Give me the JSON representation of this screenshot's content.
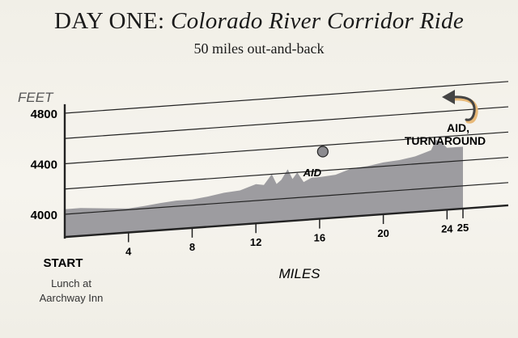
{
  "header": {
    "title_prefix": "DAY ONE:",
    "title_italic": "Colorado River Corridor Ride",
    "subtitle": "50 miles out-and-back"
  },
  "start": {
    "label": "START",
    "note_line1": "Lunch at",
    "note_line2": "Aarchway Inn"
  },
  "annotations": {
    "aid": "AID",
    "aid_turnaround_line1": "AID,",
    "aid_turnaround_line2": "TURNAROUND"
  },
  "colors": {
    "profile_fill": "#9d9ca0",
    "line": "#222222",
    "aid_marker": "#8c8b8f",
    "arrow": "#444444",
    "arrow_accent": "#e8b978"
  },
  "chart_data": {
    "type": "area",
    "title": "",
    "xlabel": "MILES",
    "ylabel": "FEET",
    "xlim": [
      0,
      25
    ],
    "ylim": [
      3820,
      4820
    ],
    "x_ticks": [
      4,
      8,
      12,
      16,
      20,
      24,
      25
    ],
    "y_ticks": [
      4000,
      4400,
      4800
    ],
    "gridlines": [
      4000,
      4200,
      4400,
      4600,
      4800
    ],
    "x": [
      0,
      1,
      2,
      3,
      4,
      5,
      6,
      7,
      8,
      9,
      10,
      11,
      11.5,
      12,
      12.5,
      13,
      13.3,
      13.6,
      14,
      14.3,
      14.6,
      15,
      15.5,
      16,
      17,
      18,
      19,
      20,
      21,
      22,
      22.5,
      23,
      23.3,
      23.6,
      24,
      25
    ],
    "series": [
      {
        "values": [
          4040,
          4040,
          4030,
          4020,
          4010,
          4020,
          4035,
          4045,
          4045,
          4060,
          4080,
          4090,
          4110,
          4130,
          4120,
          4200,
          4120,
          4150,
          4230,
          4150,
          4200,
          4120,
          4150,
          4150,
          4160,
          4200,
          4210,
          4230,
          4240,
          4260,
          4280,
          4300,
          4380,
          4360,
          4310,
          4310
        ]
      }
    ],
    "points": [
      {
        "x": 16.2,
        "y": 4350,
        "label": "AID"
      },
      {
        "x": 25,
        "y": 4310,
        "label": "AID, TURNAROUND"
      }
    ],
    "grid": true
  }
}
